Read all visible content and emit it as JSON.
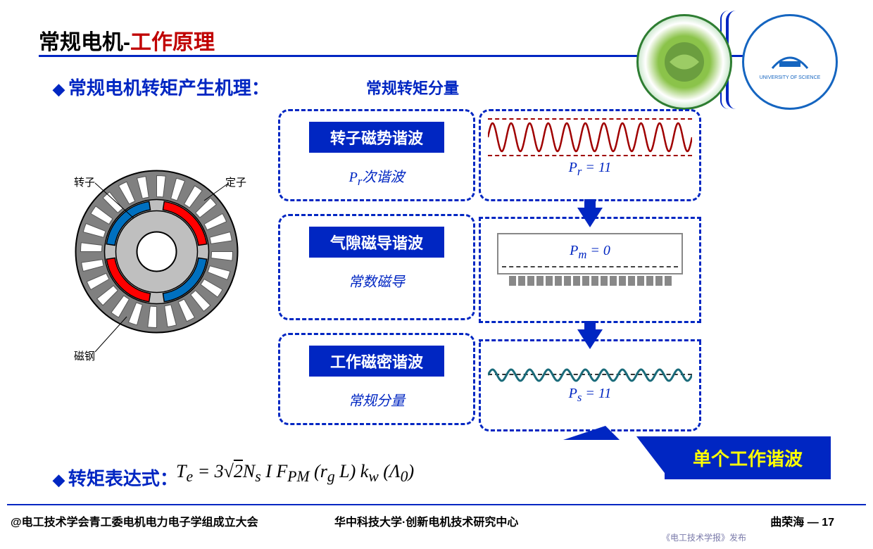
{
  "title": {
    "part1": "常规电机-",
    "part2": "工作原理"
  },
  "section1": "常规电机转矩产生机理：",
  "section_head": "常规转矩分量",
  "boxes": [
    {
      "title": "转子磁势谐波",
      "sub_html": "<i>P<sub>r</sub></i>次谐波"
    },
    {
      "title": "气隙磁导谐波",
      "sub_html": "常数磁导"
    },
    {
      "title": "工作磁密谐波",
      "sub_html": "常规分量"
    }
  ],
  "eqs": {
    "pr": "P<sub>r</sub> = 11",
    "pm": "P<sub>m</sub> = 0",
    "ps": "P<sub>s</sub> = 11"
  },
  "callout": "单个工作谐波",
  "section2": "转矩表达式：",
  "formula_html": "T<sub>e</sub> = 3<span style='font-style:normal'>√</span><span class='sqrt'>2</span>N<sub>s</sub> I F<sub>PM</sub> (r<sub>g</sub> L) k<sub>w</sub> (Λ<sub>0</sub>)",
  "motor_labels": {
    "rotor": "转子",
    "stator": "定子",
    "steel": "磁钢"
  },
  "footer": {
    "left": "@电工技术学会青工委电机电力电子学组成立大会",
    "mid": "华中科技大学·创新电机技术研究中心",
    "right": "曲荣海 — 17"
  },
  "publisher": "《电工技术学报》发布",
  "colors": {
    "primary": "#0026c2",
    "accent": "#c00000",
    "highlight": "#ffff00",
    "motor_outer": "#808080",
    "motor_slot": "#ffffff",
    "motor_ring": "#bfbfbf",
    "motor_pole_red": "#ff0000",
    "motor_pole_blue": "#0070c0",
    "wave_red": "#a00000",
    "wave_teal": "#1a6b7a"
  },
  "motor": {
    "slots": 24,
    "poles": 4
  },
  "waves": {
    "pr_periods": 11,
    "ps_periods": 11
  }
}
